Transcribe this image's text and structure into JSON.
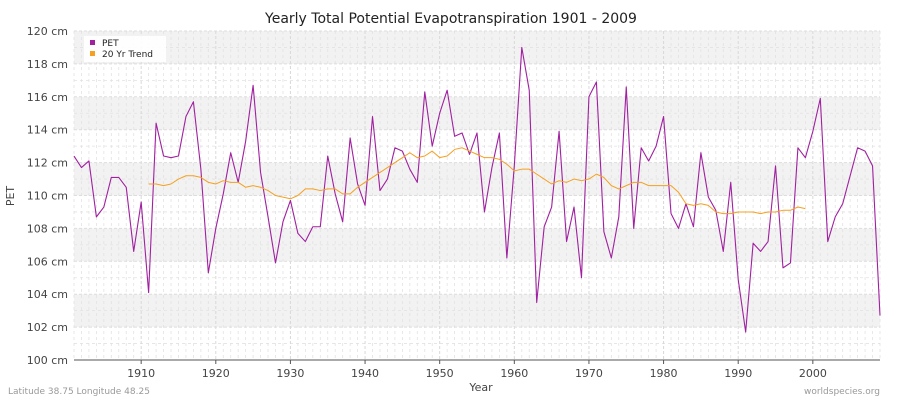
{
  "chart_data": {
    "type": "line",
    "title": "Yearly Total Potential Evapotranspiration 1901 - 2009",
    "xlabel": "Year",
    "ylabel": "PET",
    "xlim": [
      1901,
      2009
    ],
    "ylim": [
      100,
      120
    ],
    "y_unit": "cm",
    "x_ticks": [
      1910,
      1920,
      1930,
      1940,
      1950,
      1960,
      1970,
      1980,
      1990,
      2000
    ],
    "y_ticks": [
      100,
      102,
      104,
      106,
      108,
      110,
      112,
      114,
      116,
      118,
      120
    ],
    "y_tick_labels": [
      "100 cm",
      "102 cm",
      "104 cm",
      "106 cm",
      "108 cm",
      "110 cm",
      "112 cm",
      "114 cm",
      "116 cm",
      "118 cm",
      "120 cm"
    ],
    "legend": {
      "position": "top-left"
    },
    "series": [
      {
        "name": "PET",
        "color": "#a020a0",
        "x": [
          1901,
          1902,
          1903,
          1904,
          1905,
          1906,
          1907,
          1908,
          1909,
          1910,
          1911,
          1912,
          1913,
          1914,
          1915,
          1916,
          1917,
          1918,
          1919,
          1920,
          1921,
          1922,
          1923,
          1924,
          1925,
          1926,
          1927,
          1928,
          1929,
          1930,
          1931,
          1932,
          1933,
          1934,
          1935,
          1936,
          1937,
          1938,
          1939,
          1940,
          1941,
          1942,
          1943,
          1944,
          1945,
          1946,
          1947,
          1948,
          1949,
          1950,
          1951,
          1952,
          1953,
          1954,
          1955,
          1956,
          1957,
          1958,
          1959,
          1960,
          1961,
          1962,
          1963,
          1964,
          1965,
          1966,
          1967,
          1968,
          1969,
          1970,
          1971,
          1972,
          1973,
          1974,
          1975,
          1976,
          1977,
          1978,
          1979,
          1980,
          1981,
          1982,
          1983,
          1984,
          1985,
          1986,
          1987,
          1988,
          1989,
          1990,
          1991,
          1992,
          1993,
          1994,
          1995,
          1996,
          1997,
          1998,
          1999,
          2000,
          2001,
          2002,
          2003,
          2004,
          2005,
          2006,
          2007,
          2008,
          2009
        ],
        "values": [
          112.4,
          111.7,
          112.1,
          108.7,
          109.3,
          111.1,
          111.1,
          110.5,
          106.6,
          109.6,
          104.1,
          114.4,
          112.4,
          112.3,
          112.4,
          114.8,
          115.7,
          111.6,
          105.3,
          108.0,
          110.1,
          112.6,
          110.8,
          113.3,
          116.7,
          111.4,
          108.7,
          105.9,
          108.4,
          109.7,
          107.7,
          107.2,
          108.1,
          108.1,
          112.4,
          110.1,
          108.4,
          113.5,
          110.7,
          109.4,
          114.8,
          110.3,
          111.0,
          112.9,
          112.7,
          111.6,
          110.8,
          116.3,
          113.0,
          115.0,
          116.4,
          113.6,
          113.8,
          112.5,
          113.8,
          109.0,
          111.7,
          113.8,
          106.2,
          111.8,
          119.0,
          116.4,
          103.5,
          108.1,
          109.3,
          113.9,
          107.2,
          109.3,
          105.0,
          116.0,
          116.9,
          107.8,
          106.2,
          108.7,
          116.6,
          108.0,
          112.9,
          112.1,
          113.0,
          114.8,
          108.9,
          108.0,
          109.5,
          108.1,
          112.6,
          109.9,
          109.1,
          106.6,
          110.8,
          104.9,
          101.7,
          107.1,
          106.6,
          107.2,
          111.8,
          105.6,
          105.9,
          112.9,
          112.3,
          113.9,
          115.9,
          107.2,
          108.7,
          109.5,
          111.2,
          112.9,
          112.7,
          111.8,
          102.7
        ]
      },
      {
        "name": "20 Yr Trend",
        "color": "#f5a020",
        "x": [
          1911,
          1912,
          1913,
          1914,
          1915,
          1916,
          1917,
          1918,
          1919,
          1920,
          1921,
          1922,
          1923,
          1924,
          1925,
          1926,
          1927,
          1928,
          1929,
          1930,
          1931,
          1932,
          1933,
          1934,
          1935,
          1936,
          1937,
          1938,
          1939,
          1940,
          1941,
          1942,
          1943,
          1944,
          1945,
          1946,
          1947,
          1948,
          1949,
          1950,
          1951,
          1952,
          1953,
          1954,
          1955,
          1956,
          1957,
          1958,
          1959,
          1960,
          1961,
          1962,
          1963,
          1964,
          1965,
          1966,
          1967,
          1968,
          1969,
          1970,
          1971,
          1972,
          1973,
          1974,
          1975,
          1976,
          1977,
          1978,
          1979,
          1980,
          1981,
          1982,
          1983,
          1984,
          1985,
          1986,
          1987,
          1988,
          1989,
          1990,
          1991,
          1992,
          1993,
          1994,
          1995,
          1996,
          1997,
          1998,
          1999
        ],
        "values": [
          110.7,
          110.7,
          110.6,
          110.7,
          111.0,
          111.2,
          111.2,
          111.1,
          110.8,
          110.7,
          110.9,
          110.8,
          110.8,
          110.5,
          110.6,
          110.5,
          110.3,
          110.0,
          109.9,
          109.8,
          110.0,
          110.4,
          110.4,
          110.3,
          110.4,
          110.4,
          110.1,
          110.1,
          110.5,
          110.8,
          111.1,
          111.4,
          111.7,
          112.0,
          112.3,
          112.6,
          112.3,
          112.4,
          112.7,
          112.3,
          112.4,
          112.8,
          112.9,
          112.7,
          112.5,
          112.3,
          112.3,
          112.2,
          111.9,
          111.5,
          111.6,
          111.6,
          111.3,
          111.0,
          110.7,
          110.9,
          110.8,
          111.0,
          110.9,
          111.0,
          111.3,
          111.1,
          110.6,
          110.4,
          110.6,
          110.8,
          110.8,
          110.6,
          110.6,
          110.6,
          110.6,
          110.2,
          109.5,
          109.4,
          109.5,
          109.4,
          109.0,
          108.9,
          108.9,
          109.0,
          109.0,
          109.0,
          108.9,
          109.0,
          109.0,
          109.1,
          109.1,
          109.3,
          109.2
        ]
      }
    ]
  },
  "footer": {
    "location": "Latitude 38.75 Longitude 48.25",
    "source": "worldspecies.org"
  }
}
